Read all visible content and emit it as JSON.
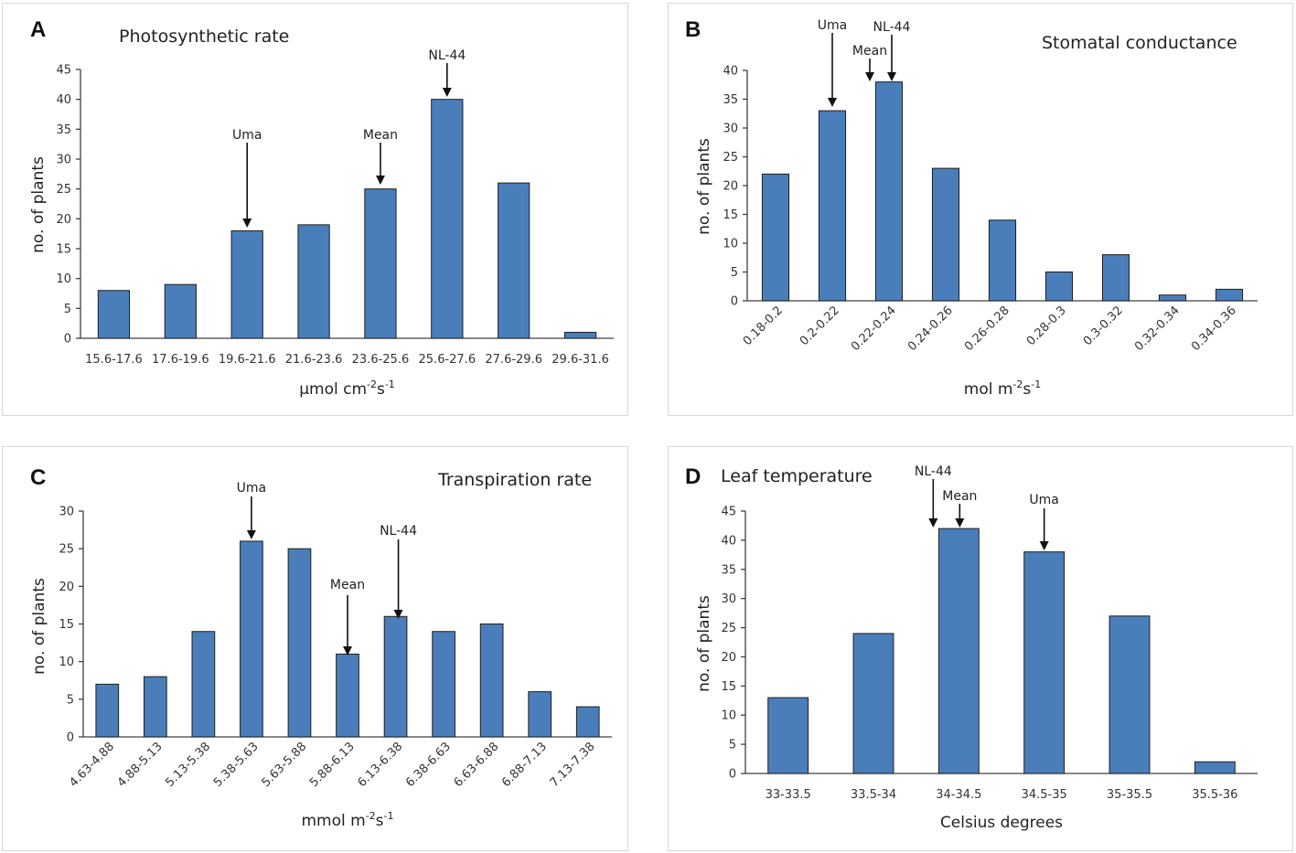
{
  "chart_data": [
    {
      "id": "A",
      "letter": "A",
      "type": "bar",
      "title": "Photosynthetic rate",
      "ylabel": "no. of plants",
      "xlabel_main": "µmol cm",
      "xlabel_sup1": "-2",
      "xlabel_mid": "s",
      "xlabel_sup2": "-1",
      "categories": [
        "15.6-17.6",
        "17.6-19.6",
        "19.6-21.6",
        "21.6-23.6",
        "23.6-25.6",
        "25.6-27.6",
        "27.6-29.6",
        "29.6-31.6"
      ],
      "values": [
        8,
        9,
        18,
        19,
        25,
        40,
        26,
        1
      ],
      "ylim": [
        0,
        45
      ],
      "yticks": [
        0,
        5,
        10,
        15,
        20,
        25,
        30,
        35,
        40,
        45
      ],
      "rotate_xticks": false,
      "annotations": [
        {
          "label": "Uma",
          "category_index": 2
        },
        {
          "label": "Mean",
          "category_index": 4
        },
        {
          "label": "NL-44",
          "category_index": 5
        }
      ]
    },
    {
      "id": "B",
      "letter": "B",
      "type": "bar",
      "title": "Stomatal conductance",
      "ylabel": "no. of plants",
      "xlabel_main": "mol m",
      "xlabel_sup1": "-2",
      "xlabel_mid": "s",
      "xlabel_sup2": "-1",
      "categories": [
        "0.18-0.2",
        "0.2-0.22",
        "0.22-0.24",
        "0.24-0.26",
        "0.26-0.28",
        "0.28-0.3",
        "0.3-0.32",
        "0.32-0.34",
        "0.34-0.36"
      ],
      "values": [
        22,
        33,
        38,
        23,
        14,
        5,
        8,
        1,
        2
      ],
      "ylim": [
        0,
        40
      ],
      "yticks": [
        0,
        5,
        10,
        15,
        20,
        25,
        30,
        35,
        40
      ],
      "rotate_xticks": true,
      "annotations": [
        {
          "label": "Uma",
          "category_index": 1
        },
        {
          "label": "Mean",
          "category_index": 2
        },
        {
          "label": "NL-44",
          "category_index": 2
        }
      ]
    },
    {
      "id": "C",
      "letter": "C",
      "type": "bar",
      "title": "Transpiration rate",
      "ylabel": "no. of plants",
      "xlabel_main": "mmol m",
      "xlabel_sup1": "-2",
      "xlabel_mid": "s",
      "xlabel_sup2": "-1",
      "categories": [
        "4.63-4.88",
        "4.88-5.13",
        "5.13-5.38",
        "5.38-5.63",
        "5.63-5.88",
        "5.88-6.13",
        "6.13-6.38",
        "6.38-6.63",
        "6.63-6.88",
        "6.88-7.13",
        "7.13-7.38"
      ],
      "values": [
        7,
        8,
        14,
        26,
        25,
        11,
        16,
        14,
        15,
        6,
        4
      ],
      "ylim": [
        0,
        30
      ],
      "yticks": [
        0,
        5,
        10,
        15,
        20,
        25,
        30
      ],
      "rotate_xticks": true,
      "annotations": [
        {
          "label": "Uma",
          "category_index": 3
        },
        {
          "label": "Mean",
          "category_index": 5
        },
        {
          "label": "NL-44",
          "category_index": 6
        }
      ]
    },
    {
      "id": "D",
      "letter": "D",
      "type": "bar",
      "title": "Leaf temperature",
      "ylabel": "no. of plants",
      "xlabel_main": "Celsius degrees",
      "xlabel_sup1": "",
      "xlabel_mid": "",
      "xlabel_sup2": "",
      "categories": [
        "33-33.5",
        "33.5-34",
        "34-34.5",
        "34.5-35",
        "35-35.5",
        "35.5-36"
      ],
      "values": [
        13,
        24,
        42,
        38,
        27,
        2
      ],
      "ylim": [
        0,
        45
      ],
      "yticks": [
        0,
        5,
        10,
        15,
        20,
        25,
        30,
        35,
        40,
        45
      ],
      "rotate_xticks": false,
      "annotations": [
        {
          "label": "NL-44",
          "category_index": 2
        },
        {
          "label": "Mean",
          "category_index": 2
        },
        {
          "label": "Uma",
          "category_index": 3
        }
      ]
    }
  ]
}
